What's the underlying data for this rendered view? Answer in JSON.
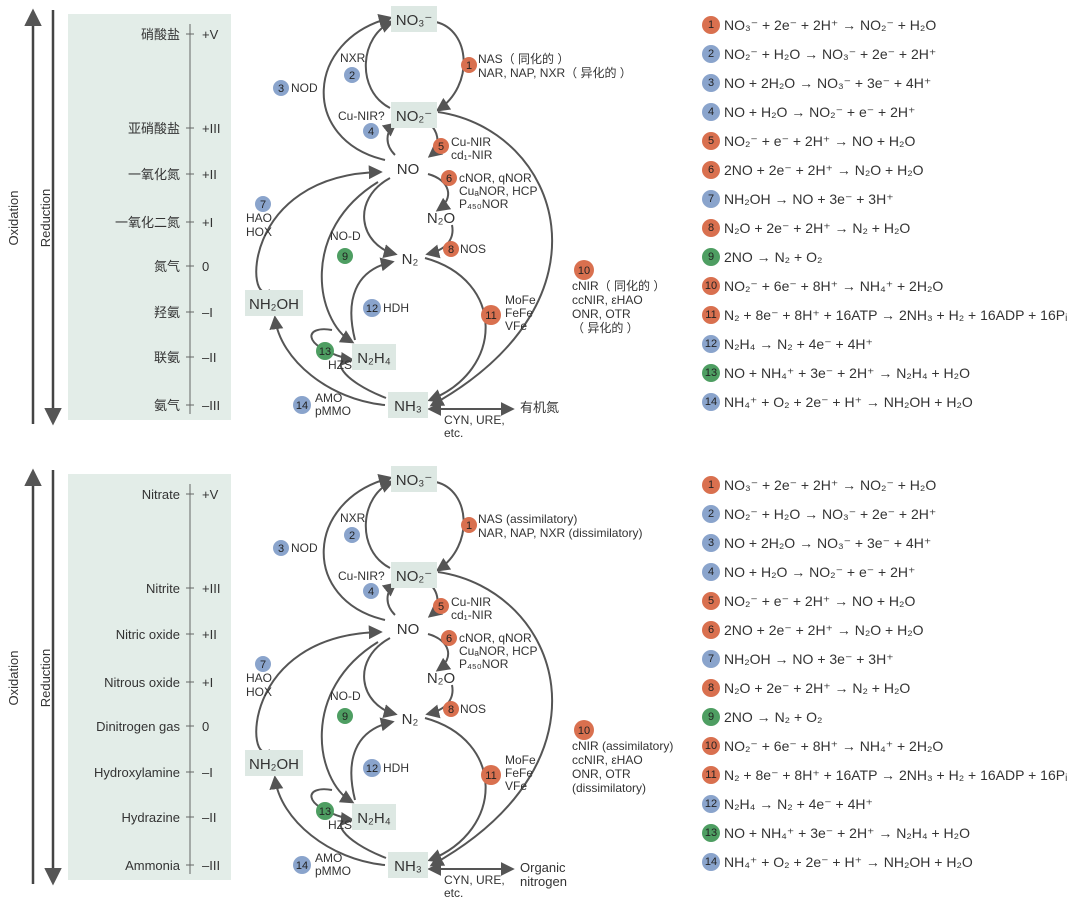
{
  "labels": {
    "oxidation": "Oxidation",
    "reduction": "Reduction"
  },
  "colors": {
    "red": "#d9704f",
    "blue": "#8aa4cc",
    "green": "#4e9e62",
    "panel": "#e3ede8"
  },
  "panels": [
    {
      "id": "cn",
      "states": [
        {
          "name": "硝酸盐",
          "ox": "+V"
        },
        {
          "name": "亚硝酸盐",
          "ox": "+III"
        },
        {
          "name": "一氧化氮",
          "ox": "+II"
        },
        {
          "name": "一氧化二氮",
          "ox": "+I"
        },
        {
          "name": "氮气",
          "ox": "0"
        },
        {
          "name": "羟氨",
          "ox": "–I"
        },
        {
          "name": "联氨",
          "ox": "–II"
        },
        {
          "name": "氨气",
          "ox": "–III"
        }
      ],
      "enzymes": {
        "nas": "NAS（ 同化的 ）",
        "nar": "NAR, NAP, NXR（ 异化的 ）",
        "cnir1": "cNIR（ 同化的 ）",
        "cnir2": "ccNIR, εHAO",
        "cnir3": "ONR, OTR",
        "cnir4": "（ 异化的 ）",
        "organic": "有机氮",
        "organic2": ""
      },
      "reactions": [
        "NO₃⁻ + 2e⁻ + 2H⁺ → NO₂⁻ + H₂O",
        "NO₂⁻ + H₂O → NO₃⁻ + 2e⁻ + 2H⁺",
        "NO + 2H₂O → NO₃⁻ + 3e⁻ + 4H⁺",
        "NO + H₂O → NO₂⁻ +  e⁻ + 2H⁺",
        "NO₂⁻ + e⁻ + 2H⁺ → NO + H₂O",
        "2NO + 2e⁻ + 2H⁺ → N₂O + H₂O",
        "NH₂OH → NO + 3e⁻ + 3H⁺",
        "N₂O + 2e⁻ + 2H⁺ → N₂ + H₂O",
        "2NO → N₂ + O₂",
        "NO₂⁻ + 6e⁻ + 8H⁺ → NH₄⁺ + 2H₂O",
        "N₂ + 8e⁻ + 8H⁺ + 16ATP → 2NH₃ + H₂ + 16ADP + 16Pᵢ",
        "N₂H₄ → N₂ + 4e⁻ + 4H⁺",
        "NO + NH₄⁺ + 3e⁻ + 2H⁺ → N₂H₄ + H₂O",
        "NH₄⁺ + O₂ + 2e⁻ + H⁺ → NH₂OH + H₂O"
      ]
    },
    {
      "id": "en",
      "states": [
        {
          "name": "Nitrate",
          "ox": "+V"
        },
        {
          "name": "Nitrite",
          "ox": "+III"
        },
        {
          "name": "Nitric oxide",
          "ox": "+II"
        },
        {
          "name": "Nitrous oxide",
          "ox": "+I"
        },
        {
          "name": "Dinitrogen gas",
          "ox": "0"
        },
        {
          "name": "Hydroxylamine",
          "ox": "–I"
        },
        {
          "name": "Hydrazine",
          "ox": "–II"
        },
        {
          "name": "Ammonia",
          "ox": "–III"
        }
      ],
      "enzymes": {
        "nas": "NAS (assimilatory)",
        "nar": "NAR, NAP, NXR (dissimilatory)",
        "cnir1": "cNIR (assimilatory)",
        "cnir2": "ccNIR, εHAO",
        "cnir3": "ONR, OTR",
        "cnir4": "(dissimilatory)",
        "organic": "Organic",
        "organic2": "nitrogen"
      },
      "reactions": [
        "NO₃⁻ + 2e⁻ + 2H⁺ → NO₂⁻ + H₂O",
        "NO₂⁻ + H₂O → NO₃⁻ + 2e⁻ + 2H⁺",
        "NO + 2H₂O → NO₃⁻ + 3e⁻ + 4H⁺",
        "NO + H₂O → NO₂⁻ +  e⁻ + 2H⁺",
        "NO₂⁻ + e⁻ + 2H⁺ → NO + H₂O",
        "2NO + 2e⁻ + 2H⁺ → N₂O + H₂O",
        "NH₂OH → NO + 3e⁻ + 3H⁺",
        "N₂O + 2e⁻ + 2H⁺ → N₂ + H₂O",
        "2NO → N₂ + O₂",
        "NO₂⁻ + 6e⁻ + 8H⁺ → NH₄⁺ + 2H₂O",
        "N₂ + 8e⁻ + 8H⁺ + 16ATP → 2NH₃ + H₂ + 16ADP + 16Pᵢ",
        "N₂H₄ → N₂ + 4e⁻ + 4H⁺",
        "NO + NH₄⁺ + 3e⁻ + 2H⁺ → N₂H₄ + H₂O",
        "NH₄⁺ + O₂ + 2e⁻ + H⁺ → NH₂OH + H₂O"
      ]
    }
  ],
  "common": {
    "nodes": {
      "no3": "NO₃⁻",
      "no2": "NO₂⁻",
      "no": "NO",
      "n2o": "N₂O",
      "n2": "N₂",
      "nh2oh": "NH₂OH",
      "n2h4": "N₂H₄",
      "nh3": "NH₃"
    },
    "enzymes": {
      "nxr": "NXR",
      "nod": "NOD",
      "cunir_q": "Cu-NIR?",
      "cunir": "Cu-NIR",
      "cd1nir": "cd₁-NIR",
      "cnor": "cNOR, qNOR",
      "cunor": "CuₐNOR, HCP",
      "p450": "P₄₅₀NOR",
      "hao": "HAO",
      "hox": "HOX",
      "nod2": "NO-D",
      "nos": "NOS",
      "hdh": "HDH",
      "mofe": "MoFe",
      "fefe": "FeFe",
      "vfe": "VFe",
      "hzs": "HZS",
      "amo": "AMO",
      "pmmo": "pMMO",
      "cyn": "CYN, URE,",
      "etc": "etc."
    },
    "badges": [
      "1",
      "2",
      "3",
      "4",
      "5",
      "6",
      "7",
      "8",
      "9",
      "10",
      "11",
      "12",
      "13",
      "14"
    ]
  }
}
